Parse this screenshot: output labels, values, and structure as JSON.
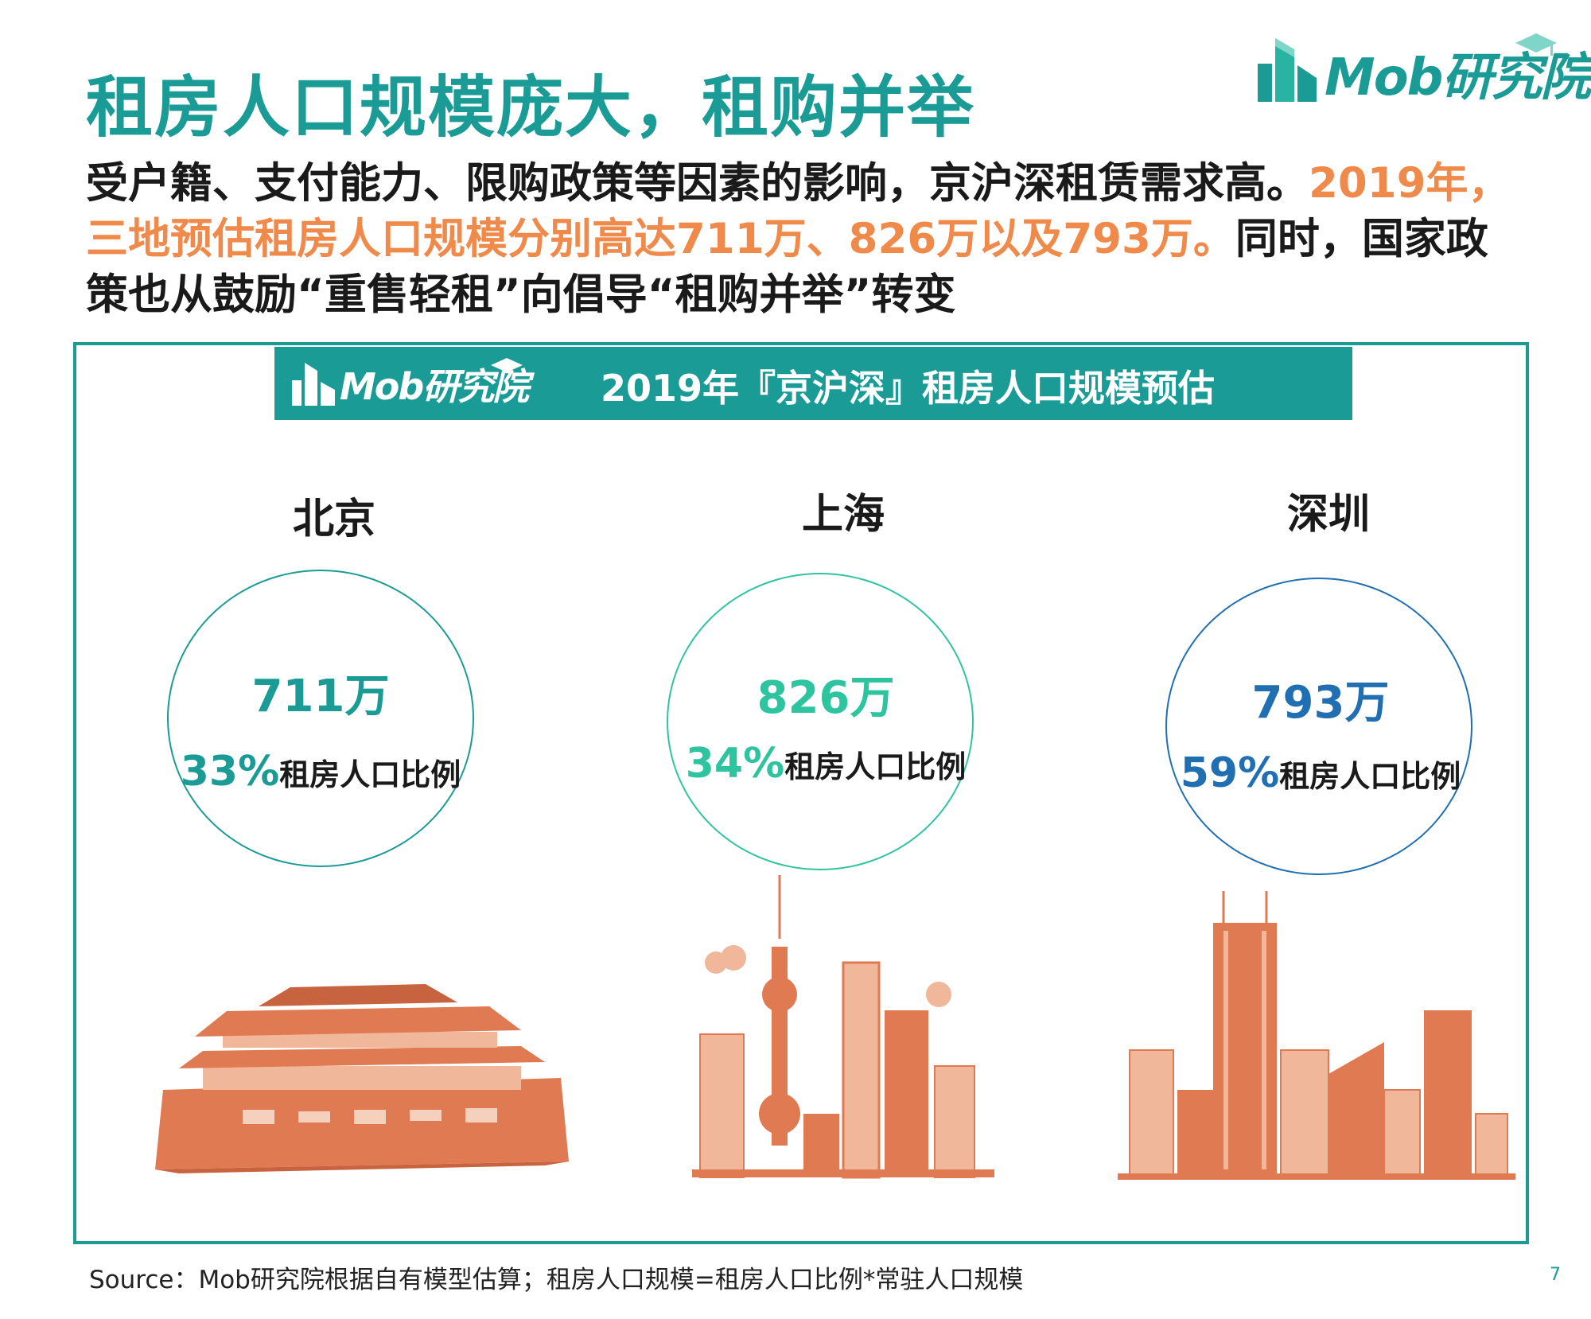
{
  "header": {
    "title": "租房人口规模庞大，租购并举",
    "logo_text": "Mob研究院"
  },
  "intro": {
    "part1": "受户籍、支付能力、限购政策等因素的影响，京沪深租赁需求高。",
    "highlight": "2019年，三地预估租房人口规模分别高达711万、826万以及793万。",
    "part2": "同时，国家政策也从鼓励“重售轻租”向倡导“租购并举”转变"
  },
  "panel": {
    "logo_text": "Mob研究院",
    "title": "2019年『京沪深』租房人口规模预估",
    "ratio_label": "租房人口比例",
    "cities": [
      {
        "name": "北京",
        "value": "711万",
        "ratio": "33%",
        "color": "#1a9b96",
        "ring": "#1a9b96"
      },
      {
        "name": "上海",
        "value": "826万",
        "ratio": "34%",
        "color": "#2ec4a0",
        "ring": "#2ec4a0"
      },
      {
        "name": "深圳",
        "value": "793万",
        "ratio": "59%",
        "color": "#1f6fb2",
        "ring": "#1f6fb2"
      }
    ]
  },
  "footer": {
    "source": "Source：Mob研究院根据自有模型估算；租房人口规模=租房人口比例*常驻人口规模",
    "page_number": "7"
  },
  "colors": {
    "accent": "#1a9b96",
    "highlight": "#f08a4b",
    "illustration": "#e07a52"
  }
}
